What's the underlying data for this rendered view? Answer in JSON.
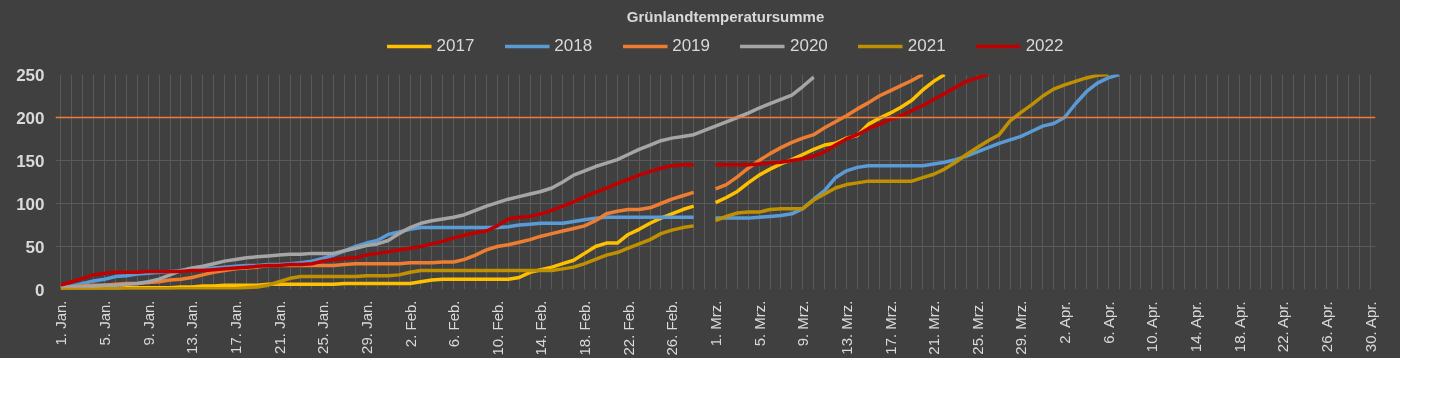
{
  "chart_data": {
    "type": "line",
    "title": "Grünlandtemperatursumme",
    "categories": [
      "1. Jan.",
      null,
      null,
      null,
      "5. Jan.",
      null,
      null,
      null,
      "9. Jan.",
      null,
      null,
      null,
      "13. Jan.",
      null,
      null,
      null,
      "17. Jan.",
      null,
      null,
      null,
      "21. Jan.",
      null,
      null,
      null,
      "25. Jan.",
      null,
      null,
      null,
      "29. Jan.",
      null,
      null,
      null,
      "2. Feb.",
      null,
      null,
      null,
      "6. Feb.",
      null,
      null,
      null,
      "10. Feb.",
      null,
      null,
      null,
      "14. Feb.",
      null,
      null,
      null,
      "18. Feb.",
      null,
      null,
      null,
      "22. Feb.",
      null,
      null,
      null,
      "26. Feb.",
      null,
      null,
      null,
      "1. Mrz.",
      null,
      null,
      null,
      "5. Mrz.",
      null,
      null,
      null,
      "9. Mrz.",
      null,
      null,
      null,
      "13. Mrz.",
      null,
      null,
      null,
      "17. Mrz.",
      null,
      null,
      null,
      "21. Mrz.",
      null,
      null,
      null,
      "25. Mrz.",
      null,
      null,
      null,
      "29. Mrz.",
      null,
      null,
      null,
      "2. Apr.",
      null,
      null,
      null,
      "6. Apr.",
      null,
      null,
      null,
      "10. Apr.",
      null,
      null,
      null,
      "14. Apr.",
      null,
      null,
      null,
      "18. Apr.",
      null,
      null,
      null,
      "22. Apr.",
      null,
      null,
      null,
      "26. Apr.",
      null,
      null,
      null,
      "30. Apr."
    ],
    "series": [
      {
        "name": "2017",
        "color": "#ffc000",
        "values": [
          0,
          0,
          1,
          1,
          1,
          1,
          2,
          2,
          2,
          2,
          2,
          3,
          3,
          4,
          4,
          5,
          5,
          5,
          5,
          6,
          6,
          6,
          6,
          6,
          6,
          6,
          7,
          7,
          7,
          7,
          7,
          7,
          7,
          9,
          11,
          12,
          12,
          12,
          12,
          12,
          12,
          12,
          14,
          20,
          23,
          26,
          30,
          34,
          42,
          50,
          54,
          54,
          64,
          70,
          77,
          83,
          88,
          93,
          97,
          null,
          101,
          107,
          114,
          124,
          133,
          140,
          146,
          151,
          157,
          163,
          168,
          170,
          176,
          179,
          192,
          199,
          205,
          212,
          220,
          232,
          242,
          250,
          null,
          null,
          null,
          null,
          null,
          null,
          null,
          null,
          null,
          null,
          null,
          null,
          null,
          null,
          null,
          null,
          null,
          null,
          null,
          null,
          null,
          null,
          null,
          null,
          null,
          null,
          null,
          null,
          null,
          null,
          null,
          null,
          null,
          null,
          null,
          null,
          null,
          null,
          null
        ]
      },
      {
        "name": "2018",
        "color": "#5b9bd5",
        "values": [
          2,
          4,
          7,
          10,
          12,
          15,
          16,
          18,
          19,
          20,
          21,
          22,
          23,
          24,
          25,
          26,
          27,
          28,
          28,
          29,
          29,
          30,
          31,
          33,
          36,
          40,
          45,
          50,
          54,
          57,
          64,
          67,
          70,
          72,
          72,
          72,
          72,
          72,
          72,
          72,
          72,
          73,
          75,
          76,
          77,
          77,
          77,
          79,
          81,
          83,
          84,
          84,
          84,
          84,
          84,
          84,
          84,
          84,
          84,
          null,
          83,
          83,
          83,
          83,
          84,
          85,
          86,
          88,
          94,
          105,
          115,
          130,
          138,
          142,
          144,
          144,
          144,
          144,
          144,
          144,
          146,
          148,
          151,
          155,
          160,
          165,
          170,
          174,
          178,
          184,
          190,
          193,
          200,
          216,
          230,
          240,
          246,
          250,
          null,
          null,
          null,
          null,
          null,
          null,
          null,
          null,
          null,
          null,
          null,
          null,
          null,
          null,
          null,
          null,
          null,
          null,
          null,
          null,
          null,
          null,
          null
        ]
      },
      {
        "name": "2019",
        "color": "#ed7d31",
        "values": [
          2,
          3,
          4,
          5,
          5,
          6,
          7,
          7,
          8,
          9,
          11,
          12,
          14,
          17,
          20,
          22,
          24,
          25,
          26,
          28,
          28,
          28,
          28,
          28,
          28,
          28,
          29,
          30,
          30,
          30,
          30,
          30,
          31,
          31,
          31,
          32,
          32,
          35,
          40,
          46,
          50,
          52,
          55,
          58,
          62,
          65,
          68,
          71,
          74,
          80,
          88,
          91,
          93,
          93,
          95,
          100,
          105,
          109,
          113,
          null,
          117,
          122,
          131,
          141,
          150,
          158,
          165,
          171,
          176,
          180,
          188,
          195,
          202,
          210,
          217,
          225,
          231,
          237,
          243,
          250,
          null,
          null,
          null,
          null,
          null,
          null,
          null,
          null,
          null,
          null,
          null,
          null,
          null,
          null,
          null,
          null,
          null,
          null,
          null,
          null,
          null,
          null,
          null,
          null,
          null,
          null,
          null,
          null,
          null,
          null,
          null,
          null,
          null,
          null,
          null,
          null,
          null,
          null,
          null,
          null,
          null
        ]
      },
      {
        "name": "2020",
        "color": "#a5a5a5",
        "values": [
          2,
          3,
          3,
          4,
          5,
          5,
          6,
          7,
          9,
          12,
          17,
          22,
          25,
          27,
          30,
          33,
          35,
          37,
          38,
          39,
          40,
          41,
          41,
          42,
          42,
          42,
          45,
          48,
          51,
          53,
          57,
          65,
          72,
          77,
          80,
          82,
          84,
          87,
          92,
          97,
          101,
          105,
          108,
          111,
          114,
          118,
          125,
          133,
          138,
          143,
          147,
          151,
          157,
          163,
          168,
          173,
          176,
          178,
          180,
          185,
          190,
          195,
          200,
          205,
          211,
          216,
          221,
          226,
          236,
          247,
          null,
          null,
          null,
          null,
          null,
          null,
          null,
          null,
          null,
          null,
          null,
          null,
          null,
          null,
          null,
          null,
          null,
          null,
          null,
          null,
          null,
          null,
          null,
          null,
          null,
          null,
          null,
          null,
          null,
          null,
          null,
          null,
          null,
          null,
          null,
          null,
          null,
          null,
          null,
          null,
          null,
          null,
          null,
          null,
          null,
          null,
          null,
          null,
          null,
          null,
          null
        ]
      },
      {
        "name": "2021",
        "color": "#bf9000",
        "values": [
          0,
          0,
          0,
          0,
          1,
          1,
          1,
          1,
          1,
          1,
          1,
          1,
          1,
          1,
          1,
          1,
          1,
          2,
          3,
          5,
          9,
          13,
          15,
          15,
          15,
          15,
          15,
          15,
          16,
          16,
          16,
          17,
          20,
          22,
          22,
          22,
          22,
          22,
          22,
          22,
          22,
          22,
          22,
          22,
          22,
          22,
          24,
          26,
          30,
          35,
          40,
          43,
          48,
          53,
          58,
          65,
          69,
          72,
          74,
          null,
          80,
          85,
          89,
          90,
          90,
          93,
          94,
          94,
          94,
          104,
          111,
          118,
          122,
          124,
          126,
          126,
          126,
          126,
          126,
          130,
          134,
          140,
          148,
          157,
          165,
          173,
          180,
          196,
          206,
          215,
          225,
          233,
          238,
          242,
          246,
          249,
          250,
          null,
          null,
          null,
          null,
          null,
          null,
          null,
          null,
          null,
          null,
          null,
          null,
          null,
          null,
          null,
          null,
          null,
          null,
          null,
          null,
          null,
          null,
          null,
          null
        ]
      },
      {
        "name": "2022",
        "color": "#c00000",
        "values": [
          5,
          9,
          13,
          17,
          19,
          20,
          20,
          20,
          21,
          21,
          21,
          21,
          22,
          22,
          23,
          24,
          25,
          26,
          27,
          28,
          28,
          29,
          29,
          30,
          33,
          35,
          36,
          37,
          40,
          42,
          44,
          46,
          48,
          50,
          53,
          56,
          60,
          63,
          66,
          68,
          74,
          82,
          84,
          85,
          88,
          92,
          97,
          102,
          108,
          113,
          118,
          123,
          128,
          133,
          137,
          141,
          144,
          145,
          145,
          null,
          145,
          145,
          145,
          145,
          146,
          147,
          148,
          150,
          152,
          155,
          160,
          168,
          175,
          180,
          187,
          192,
          198,
          202,
          208,
          214,
          221,
          228,
          235,
          242,
          246,
          250,
          null,
          null,
          null,
          null,
          null,
          null,
          null,
          null,
          null,
          null,
          null,
          null,
          null,
          null,
          null,
          null,
          null,
          null,
          null,
          null,
          null,
          null,
          null,
          null,
          null,
          null,
          null,
          null,
          null,
          null,
          null,
          null,
          null,
          null,
          null
        ]
      }
    ],
    "ylim": [
      0,
      250
    ],
    "yticks": [
      0,
      50,
      100,
      150,
      200,
      250
    ],
    "ref_lines": [
      {
        "axis": "y",
        "value": 200,
        "color": "#ed7d31"
      }
    ],
    "grid": true,
    "legend": "top",
    "marker": "none",
    "line_style": "solid"
  }
}
